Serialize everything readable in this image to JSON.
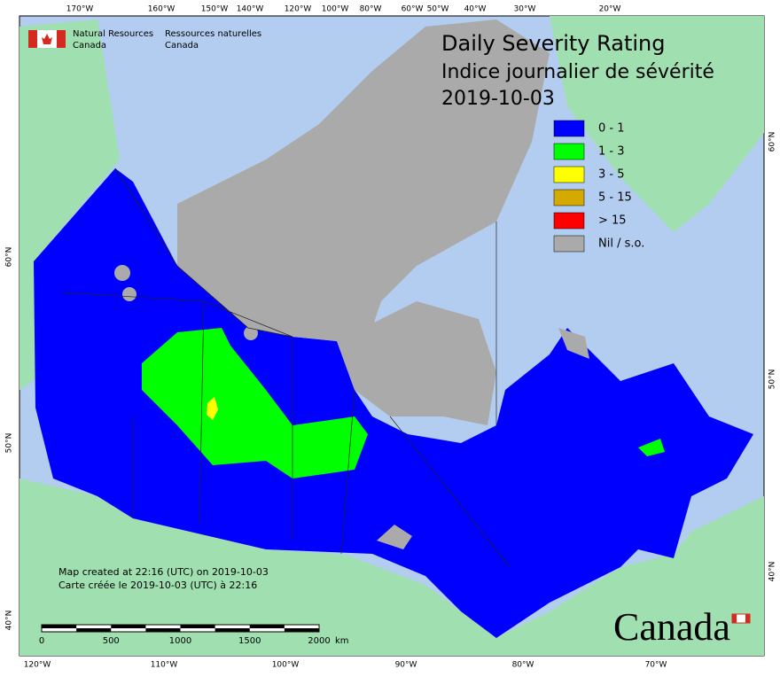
{
  "title": {
    "en": "Daily Severity Rating",
    "fr": "Indice journalier de sévérité",
    "date": "2019-10-03"
  },
  "agency": {
    "en_line1": "Natural Resources",
    "en_line2": "Canada",
    "fr_line1": "Ressources naturelles",
    "fr_line2": "Canada"
  },
  "legend": [
    {
      "label": "0 - 1",
      "color": "#0000ff"
    },
    {
      "label": "1 - 3",
      "color": "#00ff00"
    },
    {
      "label": "3 - 5",
      "color": "#ffff00"
    },
    {
      "label": "5 - 15",
      "color": "#d4aa00"
    },
    {
      "label": "> 15",
      "color": "#ff0000"
    },
    {
      "label": "Nil / s.o.",
      "color": "#aaaaaa"
    }
  ],
  "graticule": {
    "top": [
      "170°W",
      "160°W",
      "150°W",
      "140°W",
      "120°W",
      "100°W",
      "80°W",
      "60°W",
      "50°W",
      "40°W",
      "30°W",
      "20°W"
    ],
    "bottom": [
      "120°W",
      "110°W",
      "100°W",
      "90°W",
      "80°W",
      "70°W"
    ],
    "left": [
      "60°N",
      "50°N",
      "40°N"
    ],
    "right": [
      "60°N",
      "50°N",
      "40°N"
    ]
  },
  "credits": [
    "Map created at 22:16 (UTC) on 2019-10-03",
    "Carte créée le 2019-10-03 (UTC) à 22:16"
  ],
  "scale_bar": {
    "labels": [
      0,
      500,
      1000,
      1500,
      2000
    ],
    "unit": "km"
  },
  "wordmark": "Canada"
}
